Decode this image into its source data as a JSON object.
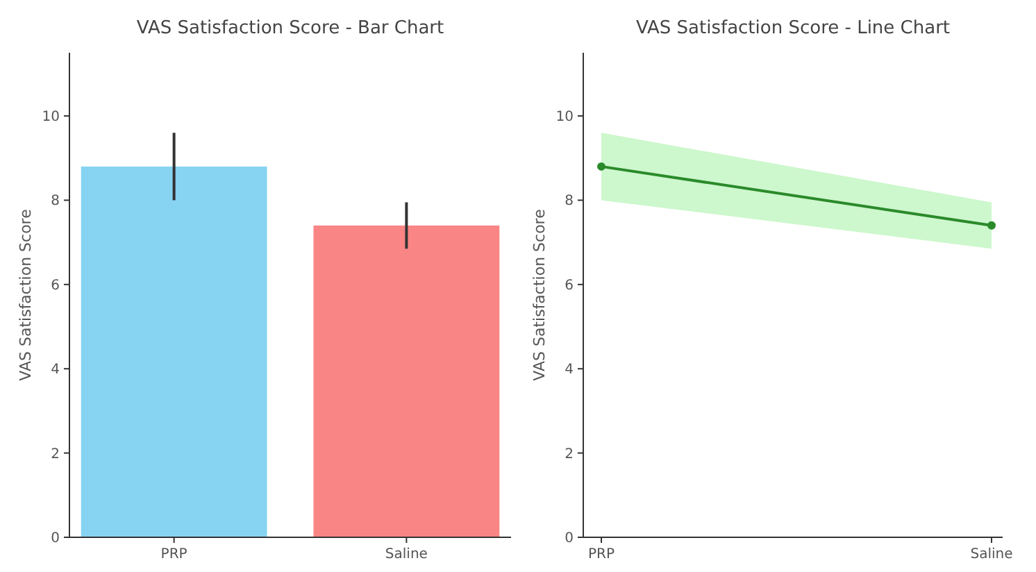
{
  "chart_data": [
    {
      "type": "bar",
      "title": "VAS Satisfaction Score - Bar Chart",
      "ylabel": "VAS Satisfaction Score",
      "categories": [
        "PRP",
        "Saline"
      ],
      "values": [
        8.8,
        7.4
      ],
      "colors": [
        "#87d3f2",
        "#f98585"
      ],
      "errors": [
        0.8,
        0.55
      ],
      "ylim": [
        0,
        11.5
      ],
      "yticks": [
        0,
        2,
        4,
        6,
        8,
        10
      ],
      "grid": false
    },
    {
      "type": "line",
      "title": "VAS Satisfaction Score - Line Chart",
      "ylabel": "VAS Satisfaction Score",
      "categories": [
        "PRP",
        "Saline"
      ],
      "series": [
        {
          "color": "#2a8a2a",
          "values": [
            8.8,
            7.4
          ],
          "lower": [
            8.0,
            6.85
          ],
          "upper": [
            9.6,
            7.95
          ]
        }
      ],
      "marker": "circle",
      "line_style": "solid",
      "ylim": [
        0,
        11.5
      ],
      "yticks": [
        0,
        2,
        4,
        6,
        8,
        10
      ],
      "grid": false
    }
  ]
}
